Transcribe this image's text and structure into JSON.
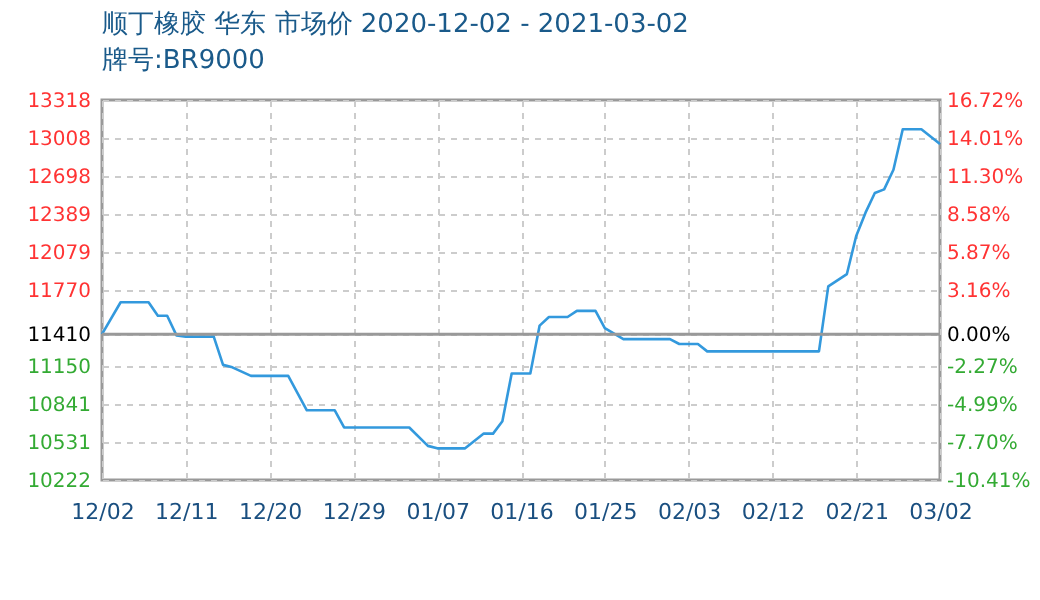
{
  "chart_data": {
    "type": "line",
    "title": "顺丁橡胶 华东 市场价 2020-12-02 - 2021-03-02",
    "subtitle": "牌号:BR9000",
    "x": [
      "2020-12-02",
      "2020-12-04",
      "2020-12-07",
      "2020-12-08",
      "2020-12-09",
      "2020-12-10",
      "2020-12-11",
      "2020-12-14",
      "2020-12-15",
      "2020-12-16",
      "2020-12-18",
      "2020-12-22",
      "2020-12-24",
      "2020-12-27",
      "2020-12-28",
      "2021-01-04",
      "2021-01-06",
      "2021-01-07",
      "2021-01-10",
      "2021-01-12",
      "2021-01-13",
      "2021-01-14",
      "2021-01-15",
      "2021-01-17",
      "2021-01-18",
      "2021-01-19",
      "2021-01-21",
      "2021-01-22",
      "2021-01-24",
      "2021-01-25",
      "2021-01-27",
      "2021-02-01",
      "2021-02-02",
      "2021-02-04",
      "2021-02-05",
      "2021-02-17",
      "2021-02-18",
      "2021-02-20",
      "2021-02-21",
      "2021-02-22",
      "2021-02-23",
      "2021-02-24",
      "2021-02-25",
      "2021-02-26",
      "2021-02-28",
      "2021-03-02"
    ],
    "series": [
      {
        "color": "#3399dd",
        "values": [
          11410,
          11670,
          11670,
          11560,
          11560,
          11400,
          11390,
          11390,
          11160,
          11140,
          11070,
          11070,
          10790,
          10790,
          10650,
          10650,
          10500,
          10480,
          10480,
          10600,
          10600,
          10700,
          11090,
          11090,
          11480,
          11550,
          11550,
          11600,
          11600,
          11460,
          11370,
          11370,
          11330,
          11330,
          11270,
          11270,
          11800,
          11900,
          12210,
          12400,
          12560,
          12590,
          12750,
          13080,
          13080,
          12960
        ]
      }
    ],
    "xlim": [
      "2020-12-02",
      "2021-03-02"
    ],
    "xticks": [
      {
        "value": "2020-12-02",
        "label": "12/02"
      },
      {
        "value": "2020-12-11",
        "label": "12/11"
      },
      {
        "value": "2020-12-20",
        "label": "12/20"
      },
      {
        "value": "2020-12-29",
        "label": "12/29"
      },
      {
        "value": "2021-01-07",
        "label": "01/07"
      },
      {
        "value": "2021-01-16",
        "label": "01/16"
      },
      {
        "value": "2021-01-25",
        "label": "01/25"
      },
      {
        "value": "2021-02-03",
        "label": "02/03"
      },
      {
        "value": "2021-02-12",
        "label": "02/12"
      },
      {
        "value": "2021-02-21",
        "label": "02/21"
      },
      {
        "value": "2021-03-02",
        "label": "03/02"
      }
    ],
    "ylim": [
      10222,
      13318
    ],
    "yticks": [
      10222,
      10531,
      10841,
      11150,
      11410,
      11770,
      12079,
      12389,
      12698,
      13008,
      13318
    ],
    "y2lim": [
      -10.41,
      16.72
    ],
    "y2ticks": [
      {
        "value": -10.41,
        "label": "-10.41%"
      },
      {
        "value": -7.7,
        "label": "-7.70%"
      },
      {
        "value": -4.99,
        "label": "-4.99%"
      },
      {
        "value": -2.27,
        "label": "-2.27%"
      },
      {
        "value": 0,
        "label": "0.00%"
      },
      {
        "value": 3.16,
        "label": "3.16%"
      },
      {
        "value": 5.87,
        "label": "5.87%"
      },
      {
        "value": 8.58,
        "label": "8.58%"
      },
      {
        "value": 11.3,
        "label": "11.30%"
      },
      {
        "value": 14.01,
        "label": "14.01%"
      },
      {
        "value": 16.72,
        "label": "16.72%"
      }
    ],
    "ref_lines": [
      {
        "axis": "y",
        "value": 11410,
        "color": "#999999"
      }
    ],
    "grid": true,
    "line_style": "solid",
    "marker": "none"
  }
}
